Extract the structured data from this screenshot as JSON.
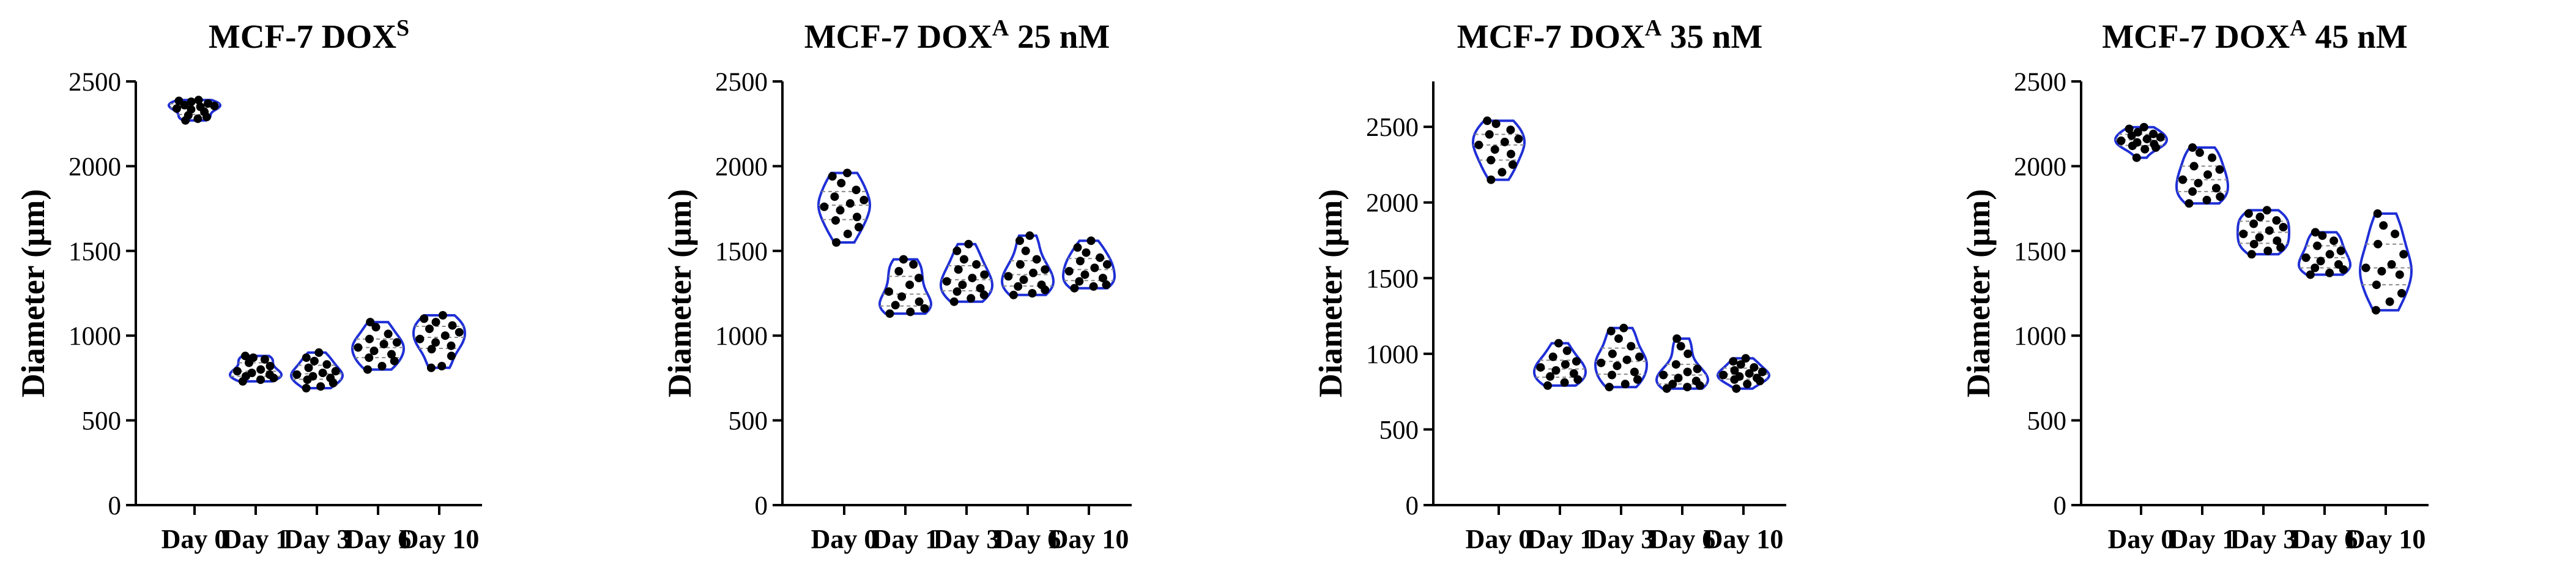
{
  "colors": {
    "violin": "#1f2fd6",
    "axis": "#000000",
    "point": "#000000",
    "quartile": "#8a8a8a"
  },
  "chart_data": [
    {
      "type": "violin",
      "title": "MCF-7 DOX",
      "title_sup": "S",
      "title_suffix": "",
      "ylabel": "Diameter (µm)",
      "ylim": [
        0,
        2500
      ],
      "yticks": [
        "0",
        "500",
        "1000",
        "1500",
        "2000",
        "2500"
      ],
      "categories": [
        "Day 0",
        "Day 1",
        "Day 3",
        "Day 6",
        "Day 10"
      ],
      "series": [
        {
          "name": "Day 0",
          "values": [
            2390,
            2380,
            2385,
            2370,
            2360,
            2355,
            2350,
            2340,
            2335,
            2320,
            2300,
            2290,
            2280,
            2270
          ]
        },
        {
          "name": "Day 1",
          "values": [
            880,
            870,
            860,
            840,
            820,
            800,
            790,
            780,
            770,
            760,
            750,
            740,
            730
          ]
        },
        {
          "name": "Day 3",
          "values": [
            900,
            870,
            850,
            830,
            810,
            790,
            780,
            770,
            760,
            750,
            740,
            720,
            700,
            690
          ]
        },
        {
          "name": "Day 6",
          "values": [
            1080,
            1050,
            1010,
            980,
            960,
            950,
            930,
            910,
            890,
            870,
            850,
            820,
            800
          ]
        },
        {
          "name": "Day 10",
          "values": [
            1120,
            1100,
            1080,
            1060,
            1040,
            1020,
            1000,
            980,
            960,
            940,
            920,
            880,
            820,
            810
          ]
        }
      ]
    },
    {
      "type": "violin",
      "title": "MCF-7 DOX",
      "title_sup": "A",
      "title_suffix": " 25 nM",
      "ylabel": "Diameter (µm)",
      "ylim": [
        0,
        2500
      ],
      "yticks": [
        "0",
        "500",
        "1000",
        "1500",
        "2000",
        "2500"
      ],
      "categories": [
        "Day 0",
        "Day 1",
        "Day 3",
        "Day 6",
        "Day 10"
      ],
      "series": [
        {
          "name": "Day 0",
          "values": [
            1960,
            1940,
            1900,
            1860,
            1820,
            1800,
            1780,
            1760,
            1740,
            1700,
            1680,
            1640,
            1600,
            1550
          ]
        },
        {
          "name": "Day 1",
          "values": [
            1450,
            1420,
            1380,
            1340,
            1300,
            1260,
            1230,
            1200,
            1180,
            1160,
            1140,
            1130
          ]
        },
        {
          "name": "Day 3",
          "values": [
            1540,
            1500,
            1450,
            1420,
            1390,
            1360,
            1340,
            1320,
            1300,
            1280,
            1260,
            1240,
            1220,
            1200
          ]
        },
        {
          "name": "Day 6",
          "values": [
            1590,
            1560,
            1500,
            1450,
            1420,
            1390,
            1370,
            1350,
            1330,
            1300,
            1290,
            1270,
            1250,
            1240
          ]
        },
        {
          "name": "Day 10",
          "values": [
            1560,
            1520,
            1490,
            1460,
            1440,
            1420,
            1400,
            1380,
            1360,
            1340,
            1320,
            1300,
            1290,
            1280
          ]
        }
      ]
    },
    {
      "type": "violin",
      "title": "MCF-7 DOX",
      "title_sup": "A",
      "title_suffix": " 35 nM",
      "ylabel": "Diameter (µm)",
      "ylim": [
        0,
        2800
      ],
      "yticks": [
        "0",
        "500",
        "1000",
        "1500",
        "2000",
        "2500"
      ],
      "categories": [
        "Day 0",
        "Day 1",
        "Day 3",
        "Day 6",
        "Day 10"
      ],
      "series": [
        {
          "name": "Day 0",
          "values": [
            2540,
            2520,
            2480,
            2450,
            2420,
            2400,
            2380,
            2350,
            2320,
            2280,
            2250,
            2200,
            2150
          ]
        },
        {
          "name": "Day 1",
          "values": [
            1070,
            1020,
            980,
            950,
            930,
            910,
            890,
            870,
            850,
            830,
            810,
            790
          ]
        },
        {
          "name": "Day 3",
          "values": [
            1170,
            1150,
            1100,
            1050,
            1000,
            980,
            960,
            940,
            920,
            880,
            860,
            830,
            800,
            780
          ]
        },
        {
          "name": "Day 6",
          "values": [
            1100,
            1050,
            1000,
            930,
            900,
            880,
            860,
            840,
            820,
            800,
            790,
            780,
            770
          ]
        },
        {
          "name": "Day 10",
          "values": [
            970,
            950,
            930,
            910,
            890,
            880,
            870,
            860,
            850,
            840,
            830,
            820,
            800,
            770
          ]
        }
      ]
    },
    {
      "type": "violin",
      "title": "MCF-7 DOX",
      "title_sup": "A",
      "title_suffix": " 45 nM",
      "ylabel": "Diameter (µm)",
      "ylim": [
        0,
        2500
      ],
      "yticks": [
        "0",
        "500",
        "1000",
        "1500",
        "2000",
        "2500"
      ],
      "categories": [
        "Day 0",
        "Day 1",
        "Day 3",
        "Day 6",
        "Day 10"
      ],
      "series": [
        {
          "name": "Day 0",
          "values": [
            2230,
            2220,
            2200,
            2190,
            2180,
            2170,
            2160,
            2150,
            2140,
            2130,
            2120,
            2110,
            2100,
            2050
          ]
        },
        {
          "name": "Day 1",
          "values": [
            2110,
            2080,
            2050,
            2000,
            1980,
            1950,
            1920,
            1900,
            1870,
            1850,
            1820,
            1800,
            1780
          ]
        },
        {
          "name": "Day 3",
          "values": [
            1740,
            1720,
            1700,
            1680,
            1660,
            1640,
            1620,
            1600,
            1580,
            1560,
            1540,
            1520,
            1500,
            1480
          ]
        },
        {
          "name": "Day 6",
          "values": [
            1610,
            1590,
            1560,
            1530,
            1500,
            1480,
            1460,
            1440,
            1420,
            1400,
            1390,
            1370,
            1360
          ]
        },
        {
          "name": "Day 10",
          "values": [
            1720,
            1650,
            1600,
            1540,
            1480,
            1420,
            1400,
            1380,
            1360,
            1300,
            1250,
            1200,
            1150
          ]
        }
      ]
    }
  ]
}
